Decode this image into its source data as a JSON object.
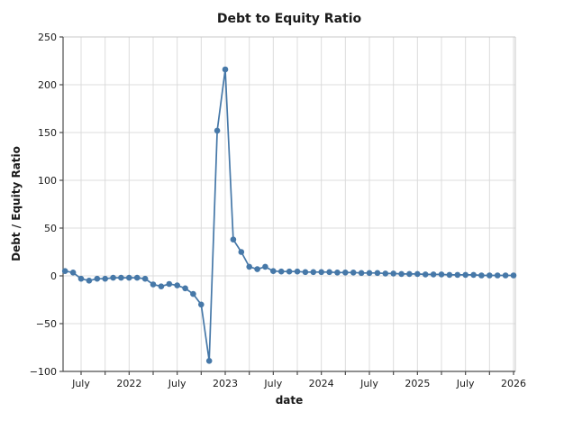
{
  "chart_data": {
    "type": "line",
    "title": "Debt to Equity Ratio",
    "xlabel": "date",
    "ylabel": "Debt / Equity Ratio",
    "ylim": [
      -100,
      250
    ],
    "grid": true,
    "legend": "none",
    "series_name": "debt_to_equity",
    "series_color": "#4678a8",
    "grid_color": "#dcdcdc",
    "spine_light_color": "#c8c8c8",
    "axis_color": "#4d4d4d",
    "background_color": "#ffffff",
    "marker": "circle",
    "y_ticks": [
      250,
      200,
      150,
      100,
      50,
      0,
      -50,
      -100
    ],
    "y_tick_labels": [
      "250",
      "200",
      "150",
      "100",
      "50",
      "0",
      "−50",
      "−100"
    ],
    "x_major_ticks": [
      {
        "label": "July",
        "month": 2
      },
      {
        "label": "2022",
        "month": 8
      },
      {
        "label": "July",
        "month": 14
      },
      {
        "label": "2023",
        "month": 20
      },
      {
        "label": "July",
        "month": 26
      },
      {
        "label": "2024",
        "month": 32
      },
      {
        "label": "July",
        "month": 38
      },
      {
        "label": "2025",
        "month": 44
      },
      {
        "label": "July",
        "month": 50
      },
      {
        "label": "2026",
        "month": 56
      }
    ],
    "x_minor_tick_months": [
      5,
      11,
      17,
      23,
      29,
      35,
      41,
      47,
      53
    ],
    "x": [
      "2021-05",
      "2021-06",
      "2021-07",
      "2021-08",
      "2021-09",
      "2021-10",
      "2021-11",
      "2021-12",
      "2022-01",
      "2022-02",
      "2022-03",
      "2022-04",
      "2022-05",
      "2022-06",
      "2022-07",
      "2022-08",
      "2022-09",
      "2022-10",
      "2022-11",
      "2022-12",
      "2023-01",
      "2023-02",
      "2023-03",
      "2023-04",
      "2023-05",
      "2023-06",
      "2023-07",
      "2023-08",
      "2023-09",
      "2023-10",
      "2023-11",
      "2023-12",
      "2024-01",
      "2024-02",
      "2024-03",
      "2024-04",
      "2024-05",
      "2024-06",
      "2024-07",
      "2024-08",
      "2024-09",
      "2024-10",
      "2024-11",
      "2024-12",
      "2025-01",
      "2025-02",
      "2025-03",
      "2025-04",
      "2025-05",
      "2025-06",
      "2025-07",
      "2025-08",
      "2025-09",
      "2025-10",
      "2025-11",
      "2025-12",
      "2026-01"
    ],
    "values": [
      5,
      3.5,
      -3,
      -5,
      -3,
      -3,
      -2,
      -2,
      -2,
      -2,
      -3,
      -9,
      -11,
      -8.5,
      -10,
      -13,
      -19,
      -30,
      -89,
      152,
      216,
      38,
      25,
      9.5,
      7,
      9.5,
      5,
      4.5,
      4.5,
      4.5,
      4,
      4,
      4,
      4,
      3.5,
      3.5,
      3.5,
      3,
      3,
      3,
      2.5,
      2.5,
      2,
      2,
      2,
      1.5,
      1.5,
      1.5,
      1,
      1,
      1,
      1,
      0.5,
      0.5,
      0.5,
      0.5,
      0.5
    ]
  }
}
